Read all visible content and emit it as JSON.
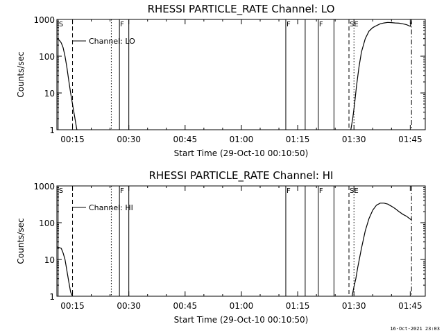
{
  "chart_data": [
    {
      "type": "line",
      "title": "RHESSI PARTICLE_RATE Channel: LO",
      "xlabel": "Start Time (29-Oct-10 00:10:50)",
      "ylabel": "Counts/sec",
      "yscale": "log",
      "ylim": [
        1,
        1000
      ],
      "xlim": [
        "00:10:50",
        "01:49:00"
      ],
      "x_ticks": [
        "00:15",
        "00:30",
        "00:45",
        "01:00",
        "01:15",
        "01:30",
        "01:45"
      ],
      "y_ticks": [
        "1",
        "10",
        "100",
        "1000"
      ],
      "legend": {
        "placement": "top-left",
        "entries": [
          "Channel: LO"
        ]
      },
      "markers": [
        {
          "time": "00:11:10",
          "style": "solid-label",
          "label": "S"
        },
        {
          "time": "00:15:00",
          "style": "dashed",
          "label": ""
        },
        {
          "time": "00:25:20",
          "style": "dotted",
          "label": ""
        },
        {
          "time": "00:27:30",
          "style": "solid",
          "label": "F"
        },
        {
          "time": "00:30:00",
          "style": "solid",
          "label": ""
        },
        {
          "time": "01:11:50",
          "style": "solid",
          "label": "F"
        },
        {
          "time": "01:17:00",
          "style": "solid",
          "label": ""
        },
        {
          "time": "01:20:30",
          "style": "solid",
          "label": "F"
        },
        {
          "time": "01:24:40",
          "style": "solid",
          "label": ""
        },
        {
          "time": "01:28:40",
          "style": "dashed",
          "label": "SE"
        },
        {
          "time": "01:30:00",
          "style": "dotted",
          "label": ""
        },
        {
          "time": "01:45:20",
          "style": "dashdot",
          "label": ""
        }
      ],
      "series": [
        {
          "name": "Channel: LO",
          "segments": [
            {
              "x": [
                "00:10:50",
                "00:11:30",
                "00:12:00",
                "00:12:30",
                "00:13:00",
                "00:13:30",
                "00:14:00",
                "00:14:30",
                "00:15:00",
                "00:15:30",
                "00:16:10"
              ],
              "y": [
                300,
                270,
                230,
                170,
                100,
                50,
                22,
                10,
                5,
                2.5,
                1
              ]
            },
            {
              "x": [
                "01:29:10",
                "01:29:40",
                "01:30:10",
                "01:30:40",
                "01:31:20",
                "01:32:00",
                "01:33:00",
                "01:34:00",
                "01:35:00",
                "01:36:00",
                "01:37:00",
                "01:38:00",
                "01:39:00",
                "01:40:00",
                "01:41:00",
                "01:42:00",
                "01:43:00",
                "01:44:00",
                "01:45:00",
                "01:45:20"
              ],
              "y": [
                1,
                2,
                5,
                15,
                50,
                130,
                300,
                480,
                600,
                680,
                760,
                800,
                830,
                820,
                800,
                790,
                760,
                720,
                650,
                900
              ]
            }
          ]
        }
      ]
    },
    {
      "type": "line",
      "title": "RHESSI PARTICLE_RATE Channel: HI",
      "xlabel": "Start Time (29-Oct-10 00:10:50)",
      "ylabel": "Counts/sec",
      "yscale": "log",
      "ylim": [
        1,
        1000
      ],
      "xlim": [
        "00:10:50",
        "01:49:00"
      ],
      "x_ticks": [
        "00:15",
        "00:30",
        "00:45",
        "01:00",
        "01:15",
        "01:30",
        "01:45"
      ],
      "y_ticks": [
        "1",
        "10",
        "100",
        "1000"
      ],
      "legend": {
        "placement": "top-left",
        "entries": [
          "Channel: HI"
        ]
      },
      "markers": [
        {
          "time": "00:11:10",
          "style": "solid-label",
          "label": "S"
        },
        {
          "time": "00:15:00",
          "style": "dashed",
          "label": ""
        },
        {
          "time": "00:25:20",
          "style": "dotted",
          "label": ""
        },
        {
          "time": "00:27:30",
          "style": "solid",
          "label": "F"
        },
        {
          "time": "00:30:00",
          "style": "solid",
          "label": ""
        },
        {
          "time": "01:11:50",
          "style": "solid",
          "label": "F"
        },
        {
          "time": "01:17:00",
          "style": "solid",
          "label": ""
        },
        {
          "time": "01:20:30",
          "style": "solid",
          "label": "F"
        },
        {
          "time": "01:24:40",
          "style": "solid",
          "label": ""
        },
        {
          "time": "01:28:40",
          "style": "dashed",
          "label": "SE"
        },
        {
          "time": "01:30:00",
          "style": "dotted",
          "label": ""
        },
        {
          "time": "01:45:20",
          "style": "dashdot",
          "label": ""
        }
      ],
      "series": [
        {
          "name": "Channel: HI",
          "segments": [
            {
              "x": [
                "00:10:50",
                "00:11:30",
                "00:12:00",
                "00:12:30",
                "00:13:00",
                "00:13:30",
                "00:14:00",
                "00:14:30",
                "00:15:00"
              ],
              "y": [
                22,
                21,
                20,
                15,
                10,
                5,
                2.5,
                1.3,
                1
              ]
            },
            {
              "x": [
                "01:29:30",
                "01:30:00",
                "01:30:30",
                "01:31:00",
                "01:32:00",
                "01:33:00",
                "01:34:00",
                "01:35:00",
                "01:36:00",
                "01:37:00",
                "01:38:00",
                "01:39:00",
                "01:40:00",
                "01:41:00",
                "01:42:00",
                "01:43:00",
                "01:44:00",
                "01:45:00",
                "01:45:20"
              ],
              "y": [
                1,
                1.8,
                3,
                6,
                20,
                60,
                130,
                220,
                300,
                340,
                340,
                320,
                280,
                240,
                200,
                170,
                150,
                125,
                120
              ]
            }
          ]
        }
      ]
    }
  ],
  "footer": {
    "timestamp": "16-Oct-2021 23:03"
  }
}
